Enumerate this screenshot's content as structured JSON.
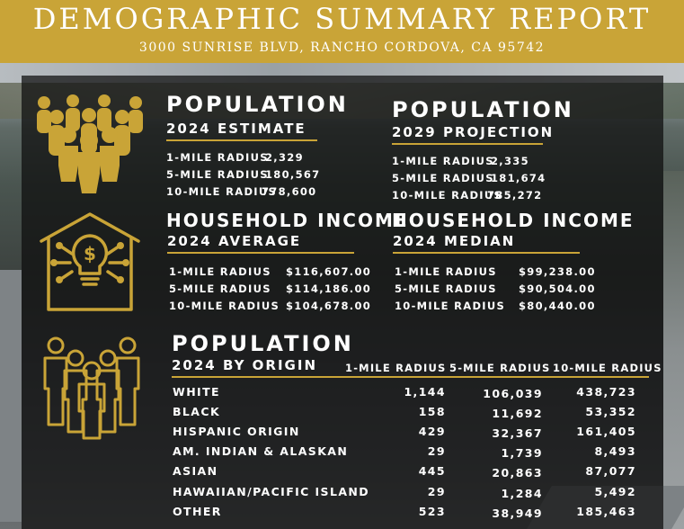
{
  "header": {
    "title": "DEMOGRAPHIC SUMMARY REPORT",
    "address": "3000 SUNRISE BLVD, RANCHO CORDOVA, CA 95742"
  },
  "pop2024": {
    "title": "POPULATION",
    "subtitle": "2024 ESTIMATE",
    "rows": [
      {
        "label": "1-MILE RADIUS",
        "value": "2,329"
      },
      {
        "label": "5-MILE RADIUS",
        "value": "180,567"
      },
      {
        "label": "10-MILE RADIUS",
        "value": "778,600"
      }
    ]
  },
  "pop2029": {
    "title": "POPULATION",
    "subtitle": "2029 PROJECTION",
    "rows": [
      {
        "label": "1-MILE RADIUS",
        "value": "2,335"
      },
      {
        "label": "5-MILE RADIUS",
        "value": "181,674"
      },
      {
        "label": "10-MILE RADIUS",
        "value": "785,272"
      }
    ]
  },
  "hh_avg": {
    "title": "HOUSEHOLD INCOME",
    "subtitle": "2024 AVERAGE",
    "rows": [
      {
        "label": "1-MILE RADIUS",
        "value": "$116,607.00"
      },
      {
        "label": "5-MILE RADIUS",
        "value": "$114,186.00"
      },
      {
        "label": "10-MILE RADIUS",
        "value": "$104,678.00"
      }
    ]
  },
  "hh_median": {
    "title": "HOUSEHOLD INCOME",
    "subtitle": "2024 MEDIAN",
    "rows": [
      {
        "label": "1-MILE RADIUS",
        "value": "$99,238.00"
      },
      {
        "label": "5-MILE RADIUS",
        "value": "$90,504.00"
      },
      {
        "label": "10-MILE RADIUS",
        "value": "$80,440.00"
      }
    ]
  },
  "origin": {
    "title": "POPULATION",
    "subtitle": "2024 BY ORIGIN",
    "columns": [
      "1-MILE RADIUS",
      "5-MILE RADIUS",
      "10-MILE RADIUS"
    ],
    "rows": [
      {
        "label": "WHITE",
        "v1": "1,144",
        "v5": "106,039",
        "v10": "438,723"
      },
      {
        "label": "BLACK",
        "v1": "158",
        "v5": "11,692",
        "v10": "53,352"
      },
      {
        "label": "HISPANIC ORIGIN",
        "v1": "429",
        "v5": "32,367",
        "v10": "161,405"
      },
      {
        "label": "AM. INDIAN & ALASKAN",
        "v1": "29",
        "v5": "1,739",
        "v10": "8,493"
      },
      {
        "label": "ASIAN",
        "v1": "445",
        "v5": "20,863",
        "v10": "87,077"
      },
      {
        "label": "HAWAIIAN/PACIFIC ISLAND",
        "v1": "29",
        "v5": "1,284",
        "v10": "5,492"
      },
      {
        "label": "OTHER",
        "v1": "523",
        "v5": "38,949",
        "v10": "185,463"
      }
    ]
  },
  "colors": {
    "gold": "#c9a437",
    "panel": "#0c0c0c",
    "text": "#ffffff"
  },
  "icons": [
    "crowd-icon",
    "house-lightbulb-dollar-icon",
    "people-group-icon"
  ]
}
